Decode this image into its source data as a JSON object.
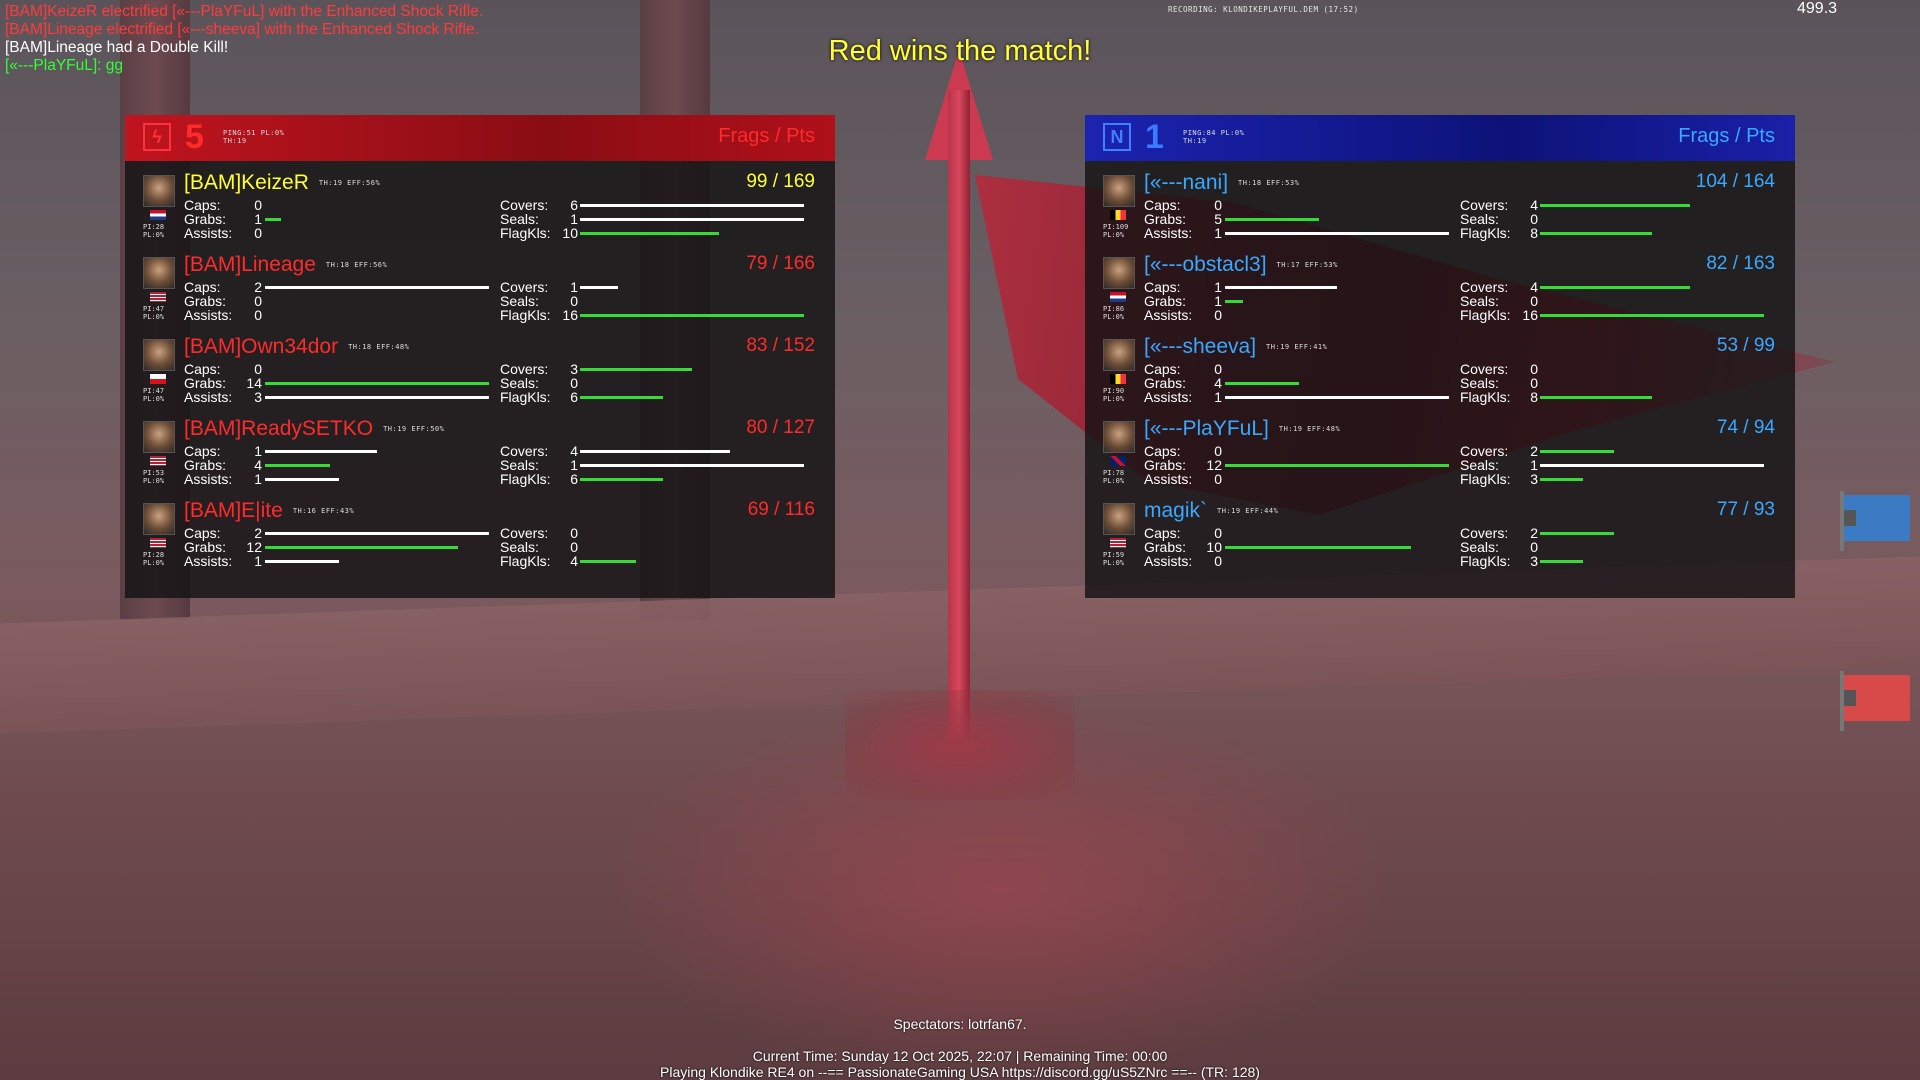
{
  "chat": [
    {
      "text": "[BAM]KeizeR electrified [«---PlaYFuL] with the Enhanced Shock Rifle.",
      "color": "red"
    },
    {
      "text": "[BAM]Lineage electrified [«---sheeva] with the Enhanced Shock Rifle.",
      "color": "red"
    },
    {
      "text": "[BAM]Lineage had a Double Kill!",
      "color": "white"
    },
    {
      "text": "[«---PlaYFuL]: gg",
      "color": "green"
    }
  ],
  "recording": "RECORDING: KLONDIKEPLAYFUL.DEM (17:52)",
  "fps": "499.3",
  "winner": "Red wins the match!",
  "teams": {
    "red": {
      "score": "5",
      "ping": "PING:51 PL:0%",
      "th": "TH:19",
      "frags_label": "Frags / Pts",
      "players": [
        {
          "name": "[BAM]KeizeR",
          "highlight": true,
          "meta": "TH:19 EFF:56%",
          "score": "99 / 169",
          "pi": "PI:28",
          "pl": "PL:0%",
          "flag": "nl",
          "caps": "0",
          "grabs": "1",
          "assists": "0",
          "covers": "6",
          "seals": "1",
          "flagkls": "10",
          "bars": {
            "caps": 0,
            "grabs": 0.07,
            "assists": 0,
            "covers": 1.0,
            "seals": 1.0,
            "flagkls": 0.62
          }
        },
        {
          "name": "[BAM]Lineage",
          "highlight": false,
          "meta": "TH:18 EFF:56%",
          "score": "79 / 166",
          "pi": "PI:47",
          "pl": "PL:0%",
          "flag": "us",
          "caps": "2",
          "grabs": "0",
          "assists": "0",
          "covers": "1",
          "seals": "0",
          "flagkls": "16",
          "bars": {
            "caps": 1.0,
            "grabs": 0,
            "assists": 0,
            "covers": 0.17,
            "seals": 0,
            "flagkls": 1.0
          }
        },
        {
          "name": "[BAM]Own34dor",
          "highlight": false,
          "meta": "TH:18 EFF:48%",
          "score": "83 / 152",
          "pi": "PI:47",
          "pl": "PL:0%",
          "flag": "cz",
          "caps": "0",
          "grabs": "14",
          "assists": "3",
          "covers": "3",
          "seals": "0",
          "flagkls": "6",
          "bars": {
            "caps": 0,
            "grabs": 1.0,
            "assists": 1.0,
            "covers": 0.5,
            "seals": 0,
            "flagkls": 0.37
          }
        },
        {
          "name": "[BAM]ReadySETKO",
          "highlight": false,
          "meta": "TH:19 EFF:50%",
          "score": "80 / 127",
          "pi": "PI:53",
          "pl": "PL:0%",
          "flag": "us",
          "caps": "1",
          "grabs": "4",
          "assists": "1",
          "covers": "4",
          "seals": "1",
          "flagkls": "6",
          "bars": {
            "caps": 0.5,
            "grabs": 0.29,
            "assists": 0.33,
            "covers": 0.67,
            "seals": 1.0,
            "flagkls": 0.37
          }
        },
        {
          "name": "[BAM]E|ite",
          "highlight": false,
          "meta": "TH:16 EFF:43%",
          "score": "69 / 116",
          "pi": "PI:28",
          "pl": "PL:0%",
          "flag": "us",
          "caps": "2",
          "grabs": "12",
          "assists": "1",
          "covers": "0",
          "seals": "0",
          "flagkls": "4",
          "bars": {
            "caps": 1.0,
            "grabs": 0.86,
            "assists": 0.33,
            "covers": 0,
            "seals": 0,
            "flagkls": 0.25
          }
        }
      ]
    },
    "blue": {
      "score": "1",
      "ping": "PING:84 PL:0%",
      "th": "TH:19",
      "frags_label": "Frags / Pts",
      "players": [
        {
          "name": "[«---nani]",
          "meta": "TH:18 EFF:53%",
          "score": "104 / 164",
          "pi": "PI:109",
          "pl": "PL:0%",
          "flag": "be",
          "caps": "0",
          "grabs": "5",
          "assists": "1",
          "covers": "4",
          "seals": "0",
          "flagkls": "8",
          "bars": {
            "caps": 0,
            "grabs": 0.42,
            "assists": 1.0,
            "covers": 0.67,
            "seals": 0,
            "flagkls": 0.5
          }
        },
        {
          "name": "[«---obstacl3]",
          "meta": "TH:17 EFF:53%",
          "score": "82 / 163",
          "pi": "PI:86",
          "pl": "PL:0%",
          "flag": "nl",
          "caps": "1",
          "grabs": "1",
          "assists": "0",
          "covers": "4",
          "seals": "0",
          "flagkls": "16",
          "bars": {
            "caps": 0.5,
            "grabs": 0.08,
            "assists": 0,
            "covers": 0.67,
            "seals": 0,
            "flagkls": 1.0
          }
        },
        {
          "name": "[«---sheeva]",
          "meta": "TH:19 EFF:41%",
          "score": "53 / 99",
          "pi": "PI:90",
          "pl": "PL:0%",
          "flag": "be",
          "caps": "0",
          "grabs": "4",
          "assists": "1",
          "covers": "0",
          "seals": "0",
          "flagkls": "8",
          "bars": {
            "caps": 0,
            "grabs": 0.33,
            "assists": 1.0,
            "covers": 0,
            "seals": 0,
            "flagkls": 0.5
          }
        },
        {
          "name": "[«---PlaYFuL]",
          "meta": "TH:19 EFF:48%",
          "score": "74 / 94",
          "pi": "PI:78",
          "pl": "PL:0%",
          "flag": "uk",
          "caps": "0",
          "grabs": "12",
          "assists": "0",
          "covers": "2",
          "seals": "1",
          "flagkls": "3",
          "bars": {
            "caps": 0,
            "grabs": 1.0,
            "assists": 0,
            "covers": 0.33,
            "seals": 1.0,
            "flagkls": 0.19
          }
        },
        {
          "name": "magik`",
          "meta": "TH:19 EFF:44%",
          "score": "77 / 93",
          "pi": "PI:59",
          "pl": "PL:0%",
          "flag": "us",
          "caps": "0",
          "grabs": "10",
          "assists": "0",
          "covers": "2",
          "seals": "0",
          "flagkls": "3",
          "bars": {
            "caps": 0,
            "grabs": 0.83,
            "assists": 0,
            "covers": 0.33,
            "seals": 0,
            "flagkls": 0.19
          }
        }
      ]
    }
  },
  "labels": {
    "caps": "Caps:",
    "grabs": "Grabs:",
    "assists": "Assists:",
    "covers": "Covers:",
    "seals": "Seals:",
    "flagkls": "FlagKls:"
  },
  "footer": {
    "spectators": "Spectators: lotrfan67.",
    "time": "Current Time: Sunday 12 Oct 2025, 22:07 | Remaining Time: 00:00",
    "server": "Playing Klondike RE4 on --== PassionateGaming USA https://discord.gg/uS5ZNrc ==-- (TR: 128)"
  },
  "colors": {
    "red_team": "#ff2a2a",
    "blue_team": "#3aa8ff",
    "highlight": "#ffff33",
    "bar_white": "#ffffff",
    "bar_green": "#33dd33"
  }
}
